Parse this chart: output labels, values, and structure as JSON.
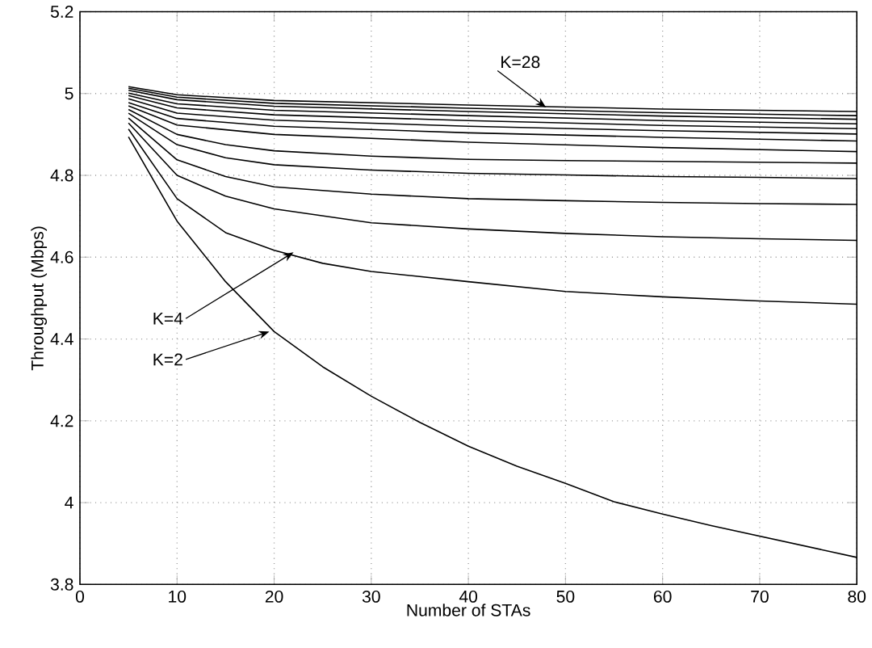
{
  "chart_data": {
    "type": "line",
    "xlabel": "Number of STAs",
    "ylabel": "Throughput (Mbps)",
    "xlim": [
      0,
      80
    ],
    "ylim": [
      3.8,
      5.2
    ],
    "xticks": [
      0,
      10,
      20,
      30,
      40,
      50,
      60,
      70,
      80
    ],
    "yticks": [
      3.8,
      4,
      4.2,
      4.4,
      4.6,
      4.8,
      5,
      5.2
    ],
    "grid": true,
    "line_style": "solid",
    "series": [
      {
        "color": "#000000",
        "x": [
          5,
          10,
          15,
          20,
          25,
          30,
          35,
          40,
          45,
          50,
          55,
          60,
          65,
          70,
          75,
          80
        ],
        "values": [
          4.894,
          4.688,
          4.54,
          4.418,
          4.332,
          4.26,
          4.196,
          4.138,
          4.089,
          4.047,
          4.002,
          3.972,
          3.944,
          3.918,
          3.892,
          3.866
        ]
      },
      {
        "color": "#000000",
        "x": [
          5,
          10,
          15,
          20,
          25,
          30,
          40,
          50,
          60,
          70,
          80
        ],
        "values": [
          4.913,
          4.743,
          4.66,
          4.617,
          4.585,
          4.565,
          4.54,
          4.516,
          4.503,
          4.493,
          4.485
        ]
      },
      {
        "color": "#000000",
        "x": [
          5,
          10,
          15,
          20,
          30,
          40,
          50,
          60,
          70,
          80
        ],
        "values": [
          4.928,
          4.8,
          4.749,
          4.718,
          4.684,
          4.669,
          4.658,
          4.65,
          4.645,
          4.641
        ]
      },
      {
        "color": "#000000",
        "x": [
          5,
          10,
          15,
          20,
          30,
          40,
          50,
          60,
          70,
          80
        ],
        "values": [
          4.94,
          4.838,
          4.797,
          4.772,
          4.754,
          4.743,
          4.738,
          4.734,
          4.731,
          4.729
        ]
      },
      {
        "color": "#000000",
        "x": [
          5,
          10,
          15,
          20,
          30,
          40,
          50,
          60,
          70,
          80
        ],
        "values": [
          4.952,
          4.875,
          4.843,
          4.826,
          4.813,
          4.805,
          4.801,
          4.797,
          4.795,
          4.792
        ]
      },
      {
        "color": "#000000",
        "x": [
          5,
          10,
          15,
          20,
          30,
          40,
          50,
          60,
          70,
          80
        ],
        "values": [
          4.961,
          4.9,
          4.875,
          4.86,
          4.847,
          4.839,
          4.836,
          4.834,
          4.832,
          4.83
        ]
      },
      {
        "color": "#000000",
        "x": [
          5,
          10,
          20,
          40,
          60,
          80
        ],
        "values": [
          4.97,
          4.923,
          4.9,
          4.881,
          4.868,
          4.858
        ]
      },
      {
        "color": "#000000",
        "x": [
          5,
          10,
          20,
          40,
          60,
          80
        ],
        "values": [
          4.978,
          4.939,
          4.92,
          4.904,
          4.893,
          4.884
        ]
      },
      {
        "color": "#000000",
        "x": [
          5,
          10,
          20,
          40,
          60,
          80
        ],
        "values": [
          4.987,
          4.952,
          4.935,
          4.92,
          4.909,
          4.901
        ]
      },
      {
        "color": "#000000",
        "x": [
          5,
          10,
          20,
          40,
          60,
          80
        ],
        "values": [
          4.995,
          4.965,
          4.948,
          4.934,
          4.922,
          4.914
        ]
      },
      {
        "color": "#000000",
        "x": [
          5,
          10,
          20,
          40,
          60,
          80
        ],
        "values": [
          5.001,
          4.975,
          4.959,
          4.946,
          4.934,
          4.926
        ]
      },
      {
        "color": "#000000",
        "x": [
          5,
          10,
          20,
          40,
          60,
          80
        ],
        "values": [
          5.008,
          4.985,
          4.969,
          4.956,
          4.945,
          4.937
        ]
      },
      {
        "color": "#000000",
        "x": [
          5,
          10,
          20,
          40,
          60,
          80
        ],
        "values": [
          5.013,
          4.991,
          4.976,
          4.964,
          4.953,
          4.946
        ]
      },
      {
        "color": "#000000",
        "x": [
          5,
          10,
          20,
          40,
          60,
          80
        ],
        "values": [
          5.017,
          4.997,
          4.983,
          4.972,
          4.962,
          4.956
        ]
      }
    ],
    "annotations": [
      {
        "text": "K=28",
        "x": 48,
        "y": 4.966
      },
      {
        "text": "K=4",
        "x": 22,
        "y": 4.612
      },
      {
        "text": "K=2",
        "x": 19.5,
        "y": 4.418
      }
    ]
  }
}
